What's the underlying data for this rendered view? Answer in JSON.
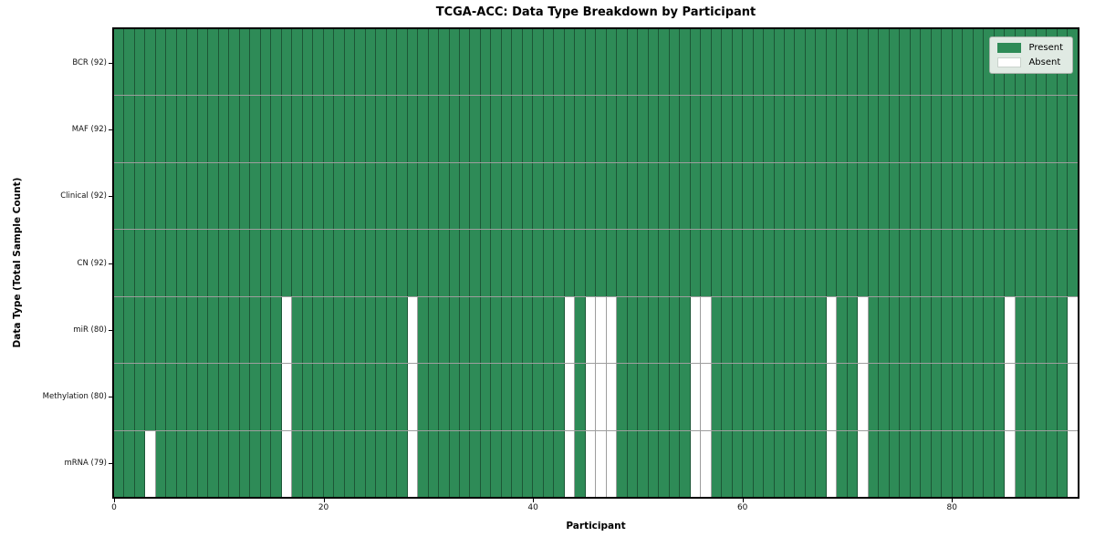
{
  "chart_data": {
    "type": "heatmap",
    "title": "TCGA-ACC: Data Type Breakdown by Participant",
    "xlabel": "Participant",
    "ylabel": "Data Type (Total Sample Count)",
    "n_participants": 92,
    "x_ticks": [
      0,
      20,
      40,
      60,
      80
    ],
    "legend_position": "upper right",
    "grid": "cell-borders",
    "legend": [
      {
        "label": "Present",
        "color": "#2e8b57"
      },
      {
        "label": "Absent",
        "color": "#ffffff"
      }
    ],
    "colors": {
      "present": "#2e8b57",
      "absent": "#ffffff",
      "grid": "rgba(0,0,0,0.38)"
    },
    "rows": [
      {
        "label": "BCR (92)",
        "data_type": "BCR",
        "total": 92,
        "absent_participants": []
      },
      {
        "label": "MAF (92)",
        "data_type": "MAF",
        "total": 92,
        "absent_participants": []
      },
      {
        "label": "Clinical (92)",
        "data_type": "Clinical",
        "total": 92,
        "absent_participants": []
      },
      {
        "label": "CN (92)",
        "data_type": "CN",
        "total": 92,
        "absent_participants": []
      },
      {
        "label": "miR (80)",
        "data_type": "miR",
        "total": 80,
        "absent_participants": [
          16,
          28,
          43,
          45,
          46,
          47,
          55,
          56,
          68,
          71,
          85,
          91
        ]
      },
      {
        "label": "Methylation (80)",
        "data_type": "Methylation",
        "total": 80,
        "absent_participants": [
          16,
          28,
          43,
          45,
          46,
          47,
          55,
          56,
          68,
          71,
          85,
          91
        ]
      },
      {
        "label": "mRNA (79)",
        "data_type": "mRNA",
        "total": 79,
        "absent_participants": [
          3,
          16,
          28,
          43,
          45,
          46,
          47,
          55,
          56,
          68,
          71,
          85,
          91
        ]
      }
    ]
  }
}
